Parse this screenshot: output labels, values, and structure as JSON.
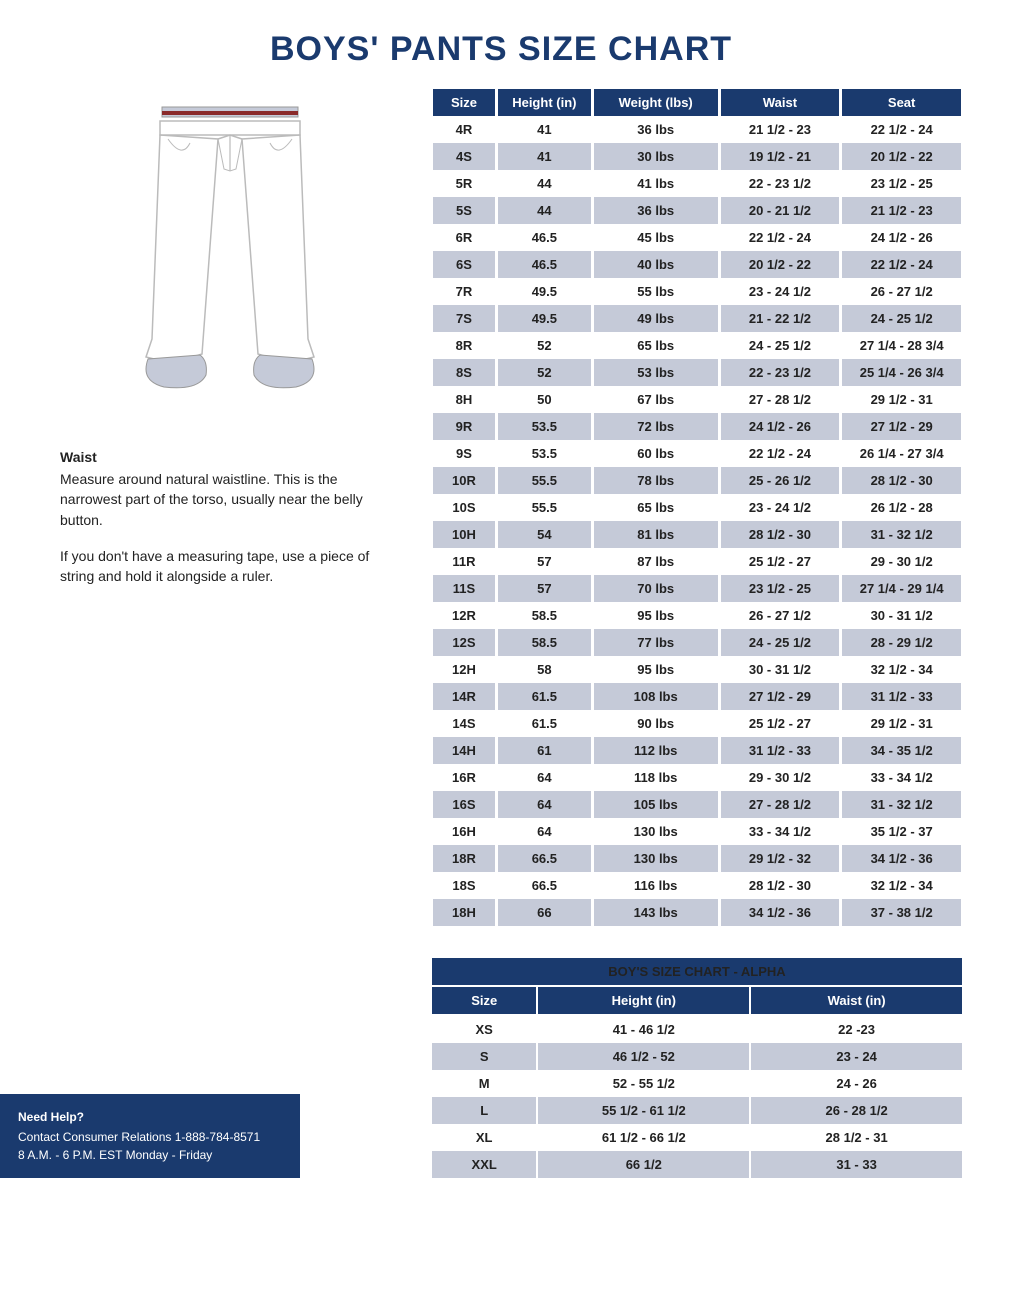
{
  "title": "BOYS' PANTS SIZE CHART",
  "colors": {
    "primary": "#1a3a6e",
    "shaded_row": "#c5cad8",
    "text": "#222222",
    "background": "#ffffff",
    "belt": "#8a2a2a"
  },
  "instructions": {
    "heading": "Waist",
    "p1": "Measure around natural waistline. This is the narrowest part of the torso, usually near the belly button.",
    "p2": "If you don't have a measuring tape, use a piece of string and hold it alongside a ruler."
  },
  "size_table": {
    "columns": [
      "Size",
      "Height (in)",
      "Weight (lbs)",
      "Waist",
      "Seat"
    ],
    "col_widths": [
      "12%",
      "18%",
      "24%",
      "23%",
      "23%"
    ],
    "rows": [
      {
        "size": "4R",
        "height": "41",
        "weight": "36 lbs",
        "waist": "21 1/2 - 23",
        "seat": "22 1/2 - 24",
        "shaded": false
      },
      {
        "size": "4S",
        "height": "41",
        "weight": "30 lbs",
        "waist": "19 1/2 - 21",
        "seat": "20 1/2 - 22",
        "shaded": true
      },
      {
        "size": "5R",
        "height": "44",
        "weight": "41 lbs",
        "waist": "22 - 23 1/2",
        "seat": "23 1/2 - 25",
        "shaded": false
      },
      {
        "size": "5S",
        "height": "44",
        "weight": "36 lbs",
        "waist": "20 - 21 1/2",
        "seat": "21 1/2 - 23",
        "shaded": true
      },
      {
        "size": "6R",
        "height": "46.5",
        "weight": "45 lbs",
        "waist": "22 1/2 - 24",
        "seat": "24 1/2 - 26",
        "shaded": false
      },
      {
        "size": "6S",
        "height": "46.5",
        "weight": "40 lbs",
        "waist": "20 1/2 - 22",
        "seat": "22 1/2 - 24",
        "shaded": true
      },
      {
        "size": "7R",
        "height": "49.5",
        "weight": "55 lbs",
        "waist": "23 - 24 1/2",
        "seat": "26 - 27 1/2",
        "shaded": false
      },
      {
        "size": "7S",
        "height": "49.5",
        "weight": "49 lbs",
        "waist": "21 - 22 1/2",
        "seat": "24 - 25 1/2",
        "shaded": true
      },
      {
        "size": "8R",
        "height": "52",
        "weight": "65 lbs",
        "waist": "24 - 25 1/2",
        "seat": "27 1/4 - 28 3/4",
        "shaded": false
      },
      {
        "size": "8S",
        "height": "52",
        "weight": "53 lbs",
        "waist": "22 - 23 1/2",
        "seat": "25 1/4 - 26 3/4",
        "shaded": true
      },
      {
        "size": "8H",
        "height": "50",
        "weight": "67 lbs",
        "waist": "27 - 28 1/2",
        "seat": "29 1/2 - 31",
        "shaded": false
      },
      {
        "size": "9R",
        "height": "53.5",
        "weight": "72 lbs",
        "waist": "24 1/2 - 26",
        "seat": "27 1/2 - 29",
        "shaded": true
      },
      {
        "size": "9S",
        "height": "53.5",
        "weight": "60 lbs",
        "waist": "22 1/2 - 24",
        "seat": "26 1/4 - 27 3/4",
        "shaded": false
      },
      {
        "size": "10R",
        "height": "55.5",
        "weight": "78 lbs",
        "waist": "25 - 26 1/2",
        "seat": "28 1/2 - 30",
        "shaded": true
      },
      {
        "size": "10S",
        "height": "55.5",
        "weight": "65 lbs",
        "waist": "23 - 24 1/2",
        "seat": "26 1/2 - 28",
        "shaded": false
      },
      {
        "size": "10H",
        "height": "54",
        "weight": "81 lbs",
        "waist": "28 1/2 - 30",
        "seat": "31 - 32 1/2",
        "shaded": true
      },
      {
        "size": "11R",
        "height": "57",
        "weight": "87 lbs",
        "waist": "25 1/2 - 27",
        "seat": "29 - 30 1/2",
        "shaded": false
      },
      {
        "size": "11S",
        "height": "57",
        "weight": "70 lbs",
        "waist": "23 1/2 - 25",
        "seat": "27 1/4 - 29 1/4",
        "shaded": true
      },
      {
        "size": "12R",
        "height": "58.5",
        "weight": "95 lbs",
        "waist": "26 - 27 1/2",
        "seat": "30 - 31 1/2",
        "shaded": false
      },
      {
        "size": "12S",
        "height": "58.5",
        "weight": "77 lbs",
        "waist": "24 - 25 1/2",
        "seat": "28 - 29 1/2",
        "shaded": true
      },
      {
        "size": "12H",
        "height": "58",
        "weight": "95 lbs",
        "waist": "30 - 31 1/2",
        "seat": "32 1/2 - 34",
        "shaded": false
      },
      {
        "size": "14R",
        "height": "61.5",
        "weight": "108 lbs",
        "waist": "27 1/2 - 29",
        "seat": "31 1/2 - 33",
        "shaded": true
      },
      {
        "size": "14S",
        "height": "61.5",
        "weight": "90 lbs",
        "waist": "25 1/2 - 27",
        "seat": "29 1/2 - 31",
        "shaded": false
      },
      {
        "size": "14H",
        "height": "61",
        "weight": "112 lbs",
        "waist": "31 1/2 - 33",
        "seat": "34 - 35 1/2",
        "shaded": true
      },
      {
        "size": "16R",
        "height": "64",
        "weight": "118 lbs",
        "waist": "29 - 30 1/2",
        "seat": "33 - 34 1/2",
        "shaded": false
      },
      {
        "size": "16S",
        "height": "64",
        "weight": "105 lbs",
        "waist": "27 - 28 1/2",
        "seat": "31 - 32 1/2",
        "shaded": true
      },
      {
        "size": "16H",
        "height": "64",
        "weight": "130 lbs",
        "waist": "33 - 34 1/2",
        "seat": "35 1/2 - 37",
        "shaded": false
      },
      {
        "size": "18R",
        "height": "66.5",
        "weight": "130 lbs",
        "waist": "29 1/2 - 32",
        "seat": "34 1/2 - 36",
        "shaded": true
      },
      {
        "size": "18S",
        "height": "66.5",
        "weight": "116 lbs",
        "waist": "28 1/2 - 30",
        "seat": "32 1/2 - 34",
        "shaded": false
      },
      {
        "size": "18H",
        "height": "66",
        "weight": "143 lbs",
        "waist": "34 1/2 - 36",
        "seat": "37 - 38 1/2",
        "shaded": true
      }
    ]
  },
  "alpha_table": {
    "title": "BOY'S SIZE CHART -  ALPHA",
    "columns": [
      "Size",
      "Height (in)",
      "Waist (in)"
    ],
    "col_widths": [
      "20%",
      "40%",
      "40%"
    ],
    "rows": [
      {
        "size": "XS",
        "height": "41 - 46 1/2",
        "waist": "22 -23",
        "shaded": false
      },
      {
        "size": "S",
        "height": "46 1/2 - 52",
        "waist": "23 - 24",
        "shaded": true
      },
      {
        "size": "M",
        "height": "52 - 55 1/2",
        "waist": "24 - 26",
        "shaded": false
      },
      {
        "size": "L",
        "height": "55 1/2 - 61 1/2",
        "waist": "26 - 28 1/2",
        "shaded": true
      },
      {
        "size": "XL",
        "height": "61 1/2 - 66 1/2",
        "waist": "28 1/2 - 31",
        "shaded": false
      },
      {
        "size": "XXL",
        "height": "66 1/2",
        "waist": "31 - 33",
        "shaded": true
      }
    ]
  },
  "help": {
    "heading": "Need Help?",
    "line1": "Contact Consumer Relations 1-888-784-8571",
    "line2": "8 A.M. - 6 P.M. EST  Monday - Friday"
  }
}
